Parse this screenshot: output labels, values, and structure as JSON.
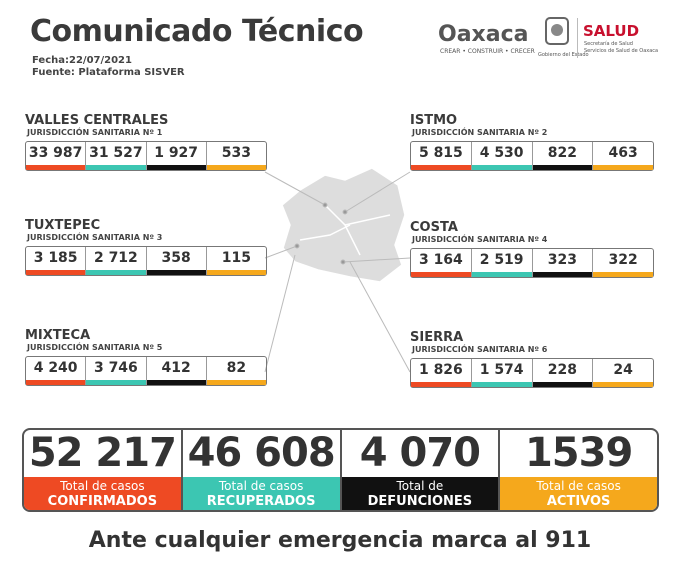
{
  "header": {
    "title": "Comunicado Técnico",
    "date": "Fecha:22/07/2021",
    "source": "Fuente: Plataforma SISVER"
  },
  "logos": {
    "state": "Oaxaca",
    "motto": "CREAR • CONSTRUIR • CRECER",
    "government": "Gobierno del Estado",
    "health": "SALUD",
    "health_sub1": "Secretaría de Salud",
    "health_sub2": "Servicios de Salud de Oaxaca"
  },
  "regions": [
    {
      "name": "VALLES CENTRALES",
      "jurisdiction": "JURISDICCIÓN SANITARIA Nº 1",
      "values": [
        "33 987",
        "31 527",
        "1 927",
        "533"
      ]
    },
    {
      "name": "ISTMO",
      "jurisdiction": "JURISDICCIÓN SANITARIA Nº 2",
      "values": [
        "5 815",
        "4 530",
        "822",
        "463"
      ]
    },
    {
      "name": "TUXTEPEC",
      "jurisdiction": "JURISDICCIÓN SANITARIA Nº 3",
      "values": [
        "3 185",
        "2 712",
        "358",
        "115"
      ]
    },
    {
      "name": "COSTA",
      "jurisdiction": "JURISDICCIÓN SANITARIA Nº 4",
      "values": [
        "3 164",
        "2 519",
        "323",
        "322"
      ]
    },
    {
      "name": "MIXTECA",
      "jurisdiction": "JURISDICCIÓN SANITARIA Nº 5",
      "values": [
        "4 240",
        "3 746",
        "412",
        "82"
      ]
    },
    {
      "name": "SIERRA",
      "jurisdiction": "JURISDICCIÓN SANITARIA Nº 6",
      "values": [
        "1 826",
        "1 574",
        "228",
        "24"
      ]
    }
  ],
  "totals": [
    {
      "value": "52 217",
      "label1": "Total de casos",
      "label2": "CONFIRMADOS"
    },
    {
      "value": "46 608",
      "label1": "Total de casos",
      "label2": "RECUPERADOS"
    },
    {
      "value": "4 070",
      "label1": "Total de",
      "label2": "DEFUNCIONES"
    },
    {
      "value": "1539",
      "label1": "Total de casos",
      "label2": "ACTIVOS"
    }
  ],
  "footer": "Ante cualquier emergencia marca al 911"
}
